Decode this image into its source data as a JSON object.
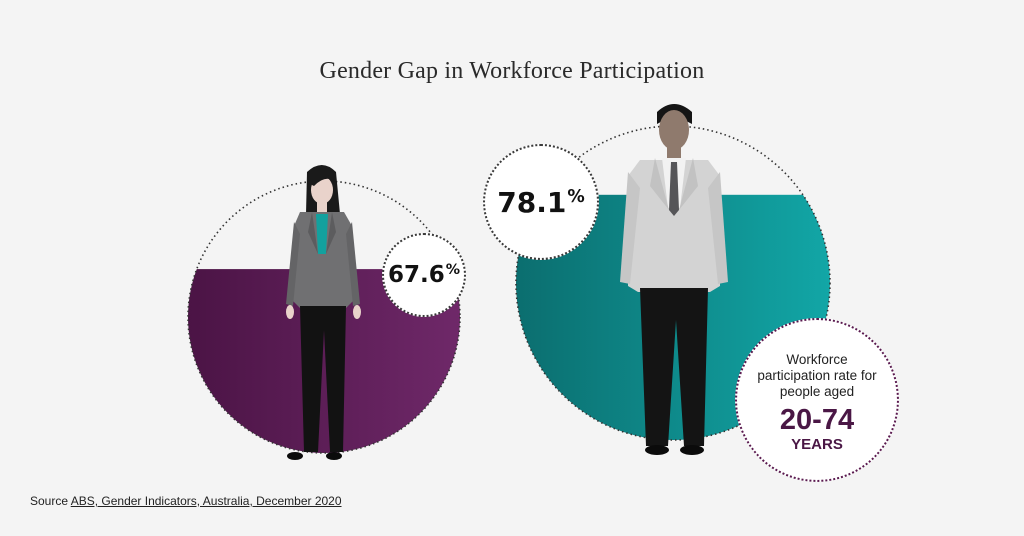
{
  "title": "Gender Gap in Workforce Participation",
  "women": {
    "value": "67.6",
    "unit": "%",
    "rate_percent": 67.6,
    "fill_color": "#5e1f58"
  },
  "men": {
    "value": "78.1",
    "unit": "%",
    "rate_percent": 78.1,
    "fill_color": "#0b9a9a"
  },
  "info": {
    "text": "Workforce participation rate for people aged",
    "age_range": "20-74",
    "unit": "YEARS"
  },
  "source": {
    "prefix": "Source",
    "link_text": "ABS, Gender Indicators, Australia, December 2020"
  }
}
